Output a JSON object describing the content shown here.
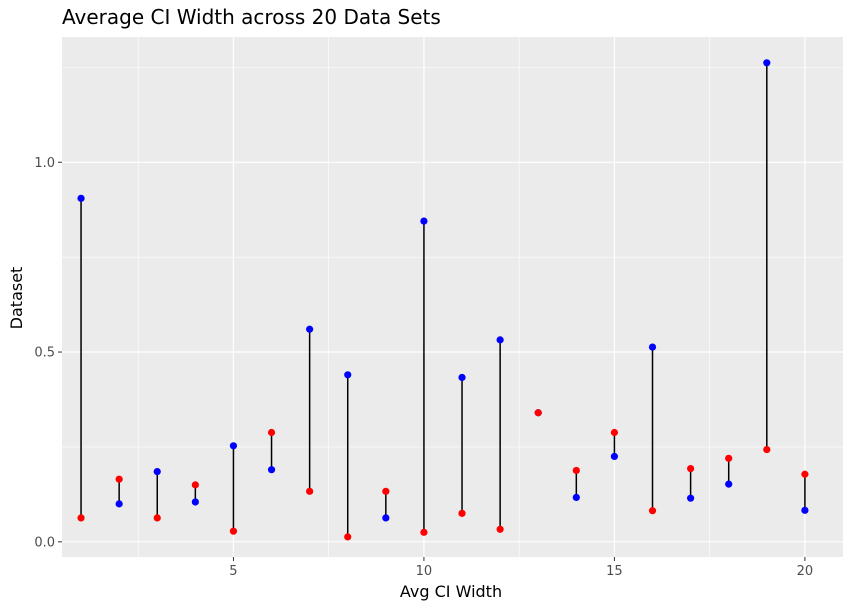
{
  "chart_data": {
    "type": "scatter",
    "title": "Average CI Width across 20 Data Sets",
    "xlabel": "Avg CI Width",
    "ylabel": "Dataset",
    "xlim": [
      0.5,
      21.0
    ],
    "ylim": [
      -0.04,
      1.33
    ],
    "x_ticks": [
      5,
      10,
      15,
      20
    ],
    "x_tick_labels": [
      "5",
      "10",
      "15",
      "20"
    ],
    "y_ticks": [
      0.0,
      0.5,
      1.0
    ],
    "y_tick_labels": [
      "0.0",
      "0.5",
      "1.0"
    ],
    "grid": true,
    "colors": {
      "panel": "#ebebeb",
      "grid": "#ffffff",
      "segment": "#000000",
      "series_a": "#0000ff",
      "series_b": "#ff0000"
    },
    "series": [
      {
        "color": "#0000ff",
        "x": [
          1,
          2,
          3,
          4,
          5,
          6,
          7,
          8,
          9,
          10,
          11,
          12,
          13,
          14,
          15,
          16,
          17,
          18,
          19,
          20
        ],
        "y": [
          0.905,
          0.1,
          0.185,
          0.105,
          0.253,
          0.19,
          0.56,
          0.44,
          0.063,
          0.845,
          0.433,
          0.532,
          0.34,
          0.117,
          0.225,
          0.513,
          0.115,
          0.152,
          1.262,
          0.083
        ]
      },
      {
        "color": "#ff0000",
        "x": [
          1,
          2,
          3,
          4,
          5,
          6,
          7,
          8,
          9,
          10,
          11,
          12,
          13,
          14,
          15,
          16,
          17,
          18,
          19,
          20
        ],
        "y": [
          0.063,
          0.165,
          0.063,
          0.15,
          0.028,
          0.288,
          0.133,
          0.013,
          0.133,
          0.025,
          0.075,
          0.033,
          0.34,
          0.188,
          0.288,
          0.082,
          0.193,
          0.22,
          0.243,
          0.178
        ]
      }
    ]
  }
}
